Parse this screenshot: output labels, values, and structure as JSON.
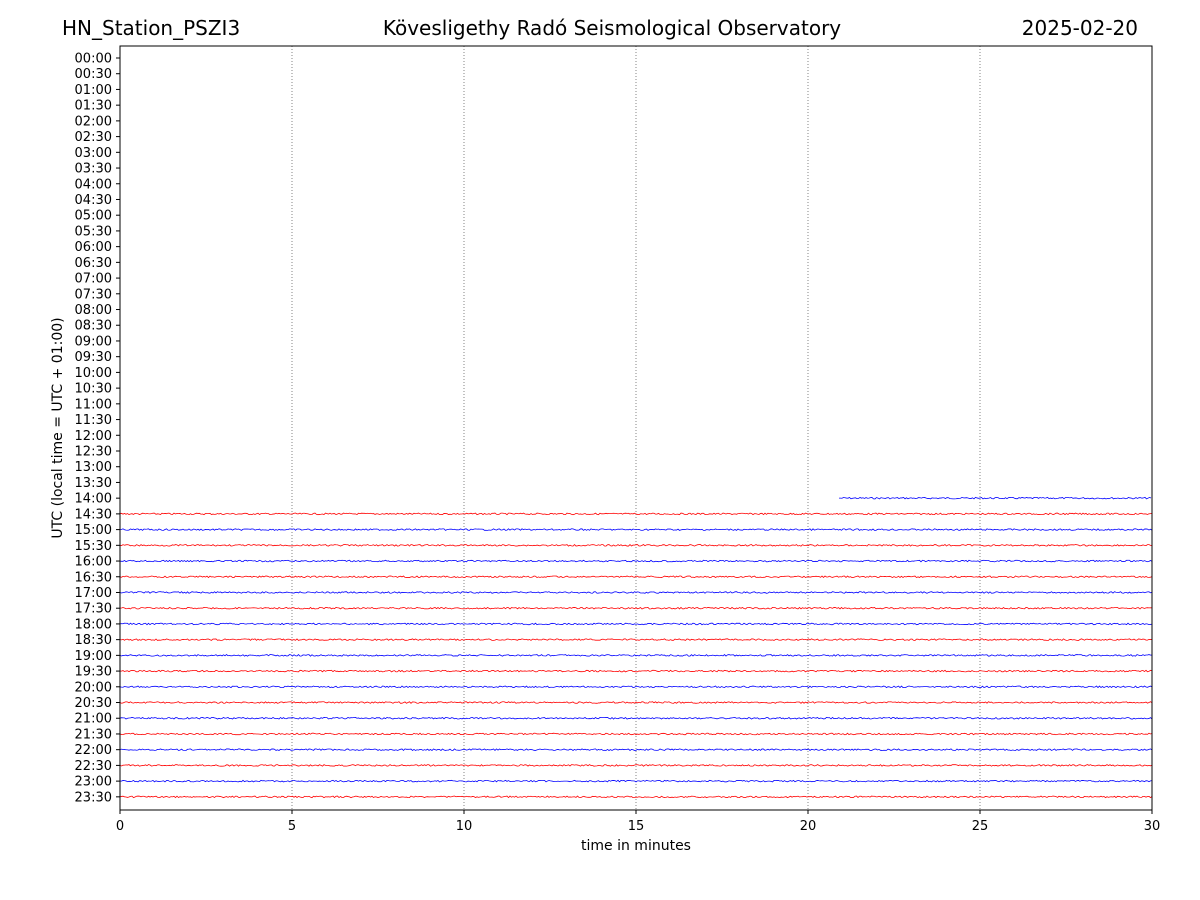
{
  "header": {
    "station": "HN_Station_PSZI3",
    "observatory": "Kövesligethy Radó Seismological Observatory",
    "date": "2025-02-20"
  },
  "chart_data": {
    "type": "line",
    "title": "Kövesligethy Radó Seismological Observatory",
    "xlabel": "time in minutes",
    "ylabel": "UTC (local time = UTC + 01:00)",
    "xlim": [
      0,
      30
    ],
    "xticks": [
      0,
      5,
      10,
      15,
      20,
      25,
      30
    ],
    "vertical_grid_at": [
      5,
      10,
      15,
      20,
      25
    ],
    "row_labels": [
      "00:00",
      "00:30",
      "01:00",
      "01:30",
      "02:00",
      "02:30",
      "03:00",
      "03:30",
      "04:00",
      "04:30",
      "05:00",
      "05:30",
      "06:00",
      "06:30",
      "07:00",
      "07:30",
      "08:00",
      "08:30",
      "09:00",
      "09:30",
      "10:00",
      "10:30",
      "11:00",
      "11:30",
      "12:00",
      "12:30",
      "13:00",
      "13:30",
      "14:00",
      "14:30",
      "15:00",
      "15:30",
      "16:00",
      "16:30",
      "17:00",
      "17:30",
      "18:00",
      "18:30",
      "19:00",
      "19:30",
      "20:00",
      "20:30",
      "21:00",
      "21:30",
      "22:00",
      "22:30",
      "23:00",
      "23:30"
    ],
    "trace_colors": [
      "#0000ff",
      "#ff0000"
    ],
    "traces": [
      {
        "row": "14:00",
        "start_min": 20.9,
        "end_min": 30,
        "color": "#0000ff"
      },
      {
        "row": "14:30",
        "start_min": 0,
        "end_min": 30,
        "color": "#ff0000"
      },
      {
        "row": "15:00",
        "start_min": 0,
        "end_min": 30,
        "color": "#0000ff"
      },
      {
        "row": "15:30",
        "start_min": 0,
        "end_min": 30,
        "color": "#ff0000"
      },
      {
        "row": "16:00",
        "start_min": 0,
        "end_min": 30,
        "color": "#0000ff"
      },
      {
        "row": "16:30",
        "start_min": 0,
        "end_min": 30,
        "color": "#ff0000"
      },
      {
        "row": "17:00",
        "start_min": 0,
        "end_min": 30,
        "color": "#0000ff"
      },
      {
        "row": "17:30",
        "start_min": 0,
        "end_min": 30,
        "color": "#ff0000"
      },
      {
        "row": "18:00",
        "start_min": 0,
        "end_min": 30,
        "color": "#0000ff"
      },
      {
        "row": "18:30",
        "start_min": 0,
        "end_min": 30,
        "color": "#ff0000"
      },
      {
        "row": "19:00",
        "start_min": 0,
        "end_min": 30,
        "color": "#0000ff"
      },
      {
        "row": "19:30",
        "start_min": 0,
        "end_min": 30,
        "color": "#ff0000"
      },
      {
        "row": "20:00",
        "start_min": 0,
        "end_min": 30,
        "color": "#0000ff"
      },
      {
        "row": "20:30",
        "start_min": 0,
        "end_min": 30,
        "color": "#ff0000"
      },
      {
        "row": "21:00",
        "start_min": 0,
        "end_min": 30,
        "color": "#0000ff"
      },
      {
        "row": "21:30",
        "start_min": 0,
        "end_min": 30,
        "color": "#ff0000"
      },
      {
        "row": "22:00",
        "start_min": 0,
        "end_min": 30,
        "color": "#0000ff"
      },
      {
        "row": "22:30",
        "start_min": 0,
        "end_min": 30,
        "color": "#ff0000"
      },
      {
        "row": "23:00",
        "start_min": 0,
        "end_min": 30,
        "color": "#0000ff"
      },
      {
        "row": "23:30",
        "start_min": 0,
        "end_min": 30,
        "color": "#ff0000"
      }
    ],
    "grid": "vertical dotted",
    "legend": "none"
  }
}
